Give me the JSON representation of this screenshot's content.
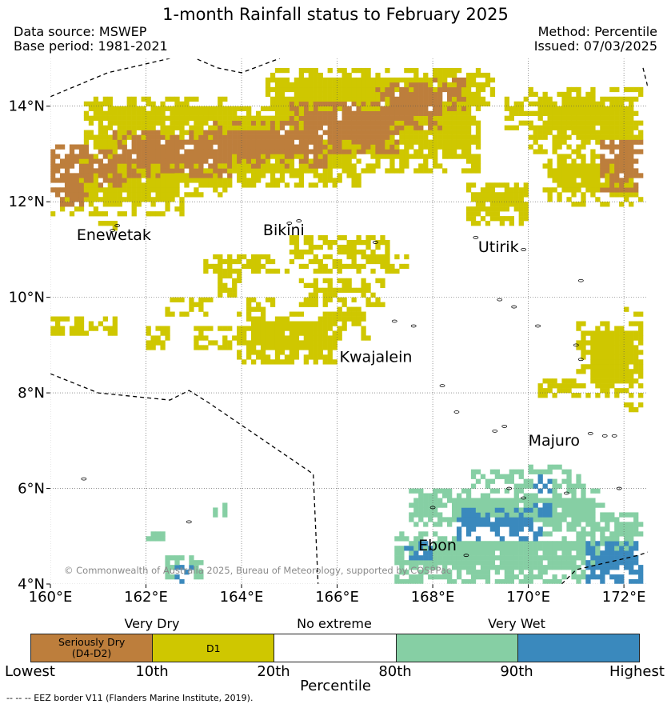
{
  "title": "1-month Rainfall status to February 2025",
  "header": {
    "data_source": "Data source: MSWEP",
    "base_period": "Base period: 1981-2021",
    "method": "Method: Percentile",
    "issued": "Issued: 07/03/2025"
  },
  "map": {
    "lon_range": [
      160,
      172.5
    ],
    "lat_range": [
      4,
      15
    ],
    "x_ticks": [
      "160°E",
      "162°E",
      "164°E",
      "166°E",
      "168°E",
      "170°E",
      "172°E"
    ],
    "y_ticks": [
      "4°N",
      "6°N",
      "8°N",
      "10°N",
      "12°N",
      "14°N"
    ],
    "places": [
      {
        "name": "Enewetak",
        "lon": 160.55,
        "lat": 11.2
      },
      {
        "name": "Bikini",
        "lon": 164.45,
        "lat": 11.3
      },
      {
        "name": "Utirik",
        "lon": 168.95,
        "lat": 10.95
      },
      {
        "name": "Kwajalein",
        "lon": 166.05,
        "lat": 8.65
      },
      {
        "name": "Majuro",
        "lon": 170.0,
        "lat": 6.9
      },
      {
        "name": "Ebon",
        "lon": 167.7,
        "lat": 4.7
      }
    ],
    "copyright": "© Commonwealth of Australia 2025, Bureau of Meteorology, supported by COSPPac"
  },
  "legend": {
    "groups": [
      "Very Dry",
      "No extreme",
      "Very Wet"
    ],
    "categories": [
      {
        "label": "Seriously Dry",
        "label2": "(D4-D2)",
        "color": "#bd7e3c"
      },
      {
        "label": "D1",
        "label2": "",
        "color": "#cfc700"
      },
      {
        "label": "",
        "label2": "",
        "color": "#ffffff"
      },
      {
        "label": "",
        "label2": "",
        "color": "#86cfa4"
      },
      {
        "label": "",
        "label2": "",
        "color": "#3a89bd"
      }
    ],
    "ticks": [
      "Lowest",
      "10th",
      "20th",
      "80th",
      "90th",
      "Highest"
    ],
    "axis_label": "Percentile"
  },
  "footnote": "--  --  -- EEZ border V11 (Flanders Marine Institute, 2019)."
}
